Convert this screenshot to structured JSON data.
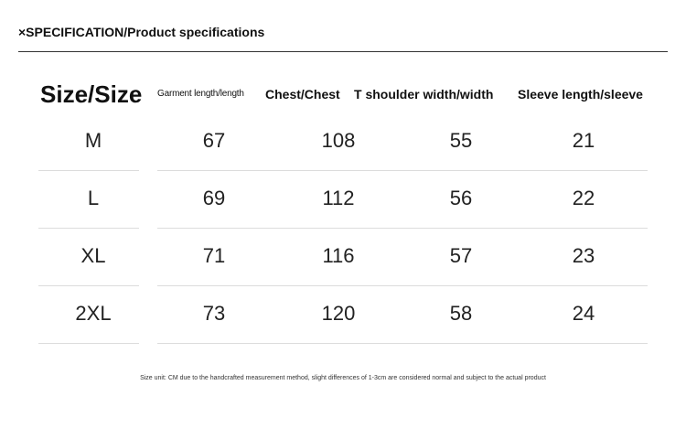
{
  "header": {
    "title": "×SPECIFICATION/Product specifications"
  },
  "table": {
    "columns": [
      "Size/Size",
      "Garment length/length",
      "Chest/Chest",
      "T shoulder width/width",
      "Sleeve length/sleeve"
    ],
    "rows": [
      [
        "M",
        "67",
        "108",
        "55",
        "21"
      ],
      [
        "L",
        "69",
        "112",
        "56",
        "22"
      ],
      [
        "XL",
        "71",
        "116",
        "57",
        "23"
      ],
      [
        "2XL",
        "73",
        "120",
        "58",
        "24"
      ]
    ]
  },
  "footnote": "Size unit: CM due to the handcrafted measurement method, slight differences of 1-3cm are considered normal and subject to the actual product"
}
